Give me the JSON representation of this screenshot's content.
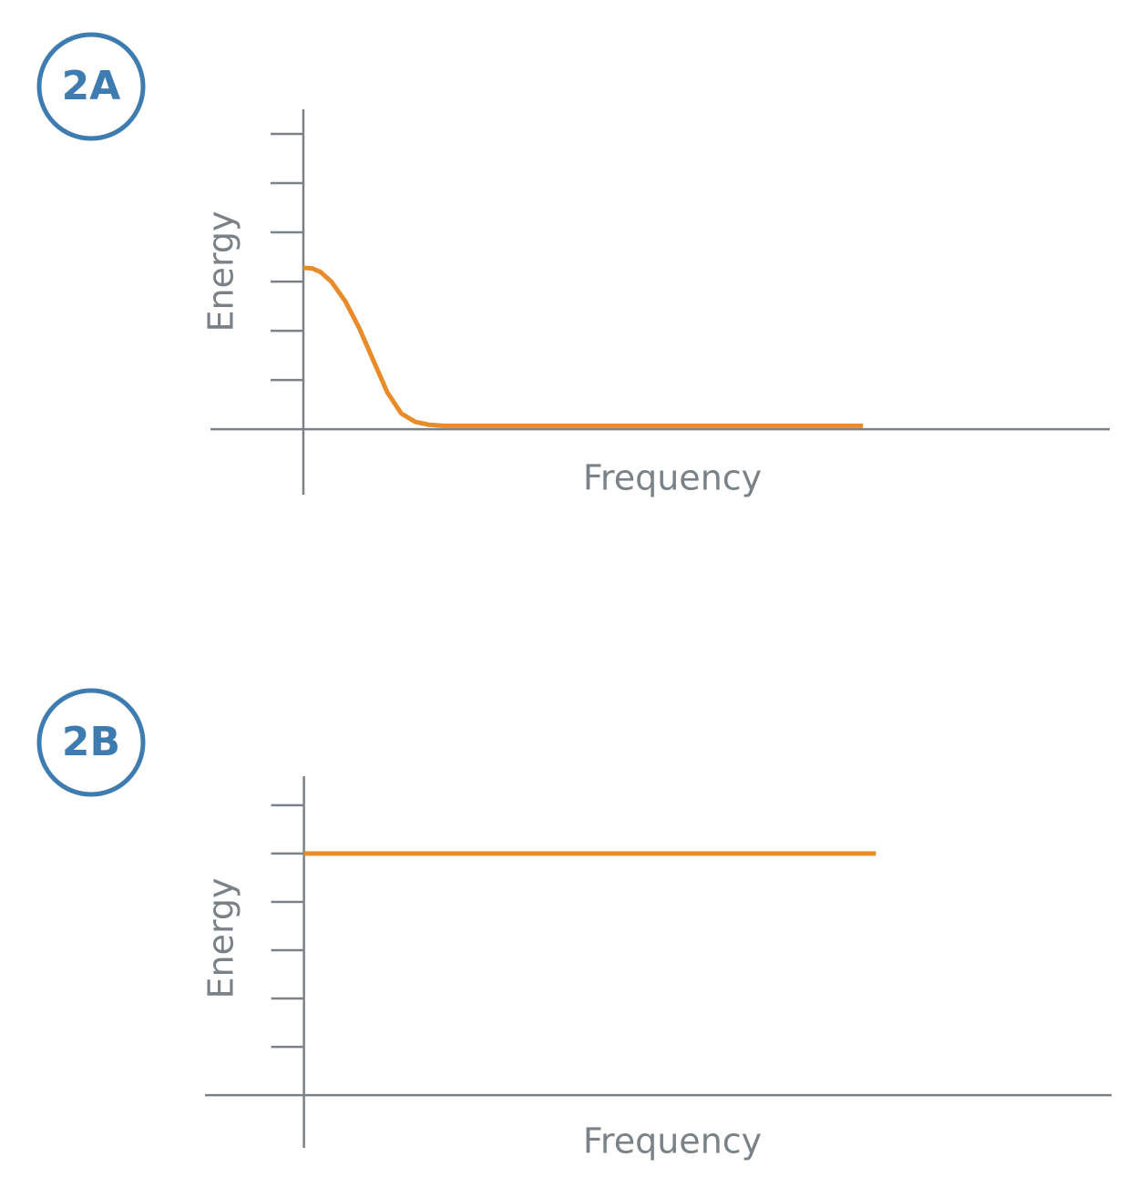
{
  "chart_data": [
    {
      "type": "line",
      "label": "2A",
      "x_label": "Frequency",
      "y_label": "Energy",
      "x": [
        0,
        0.15,
        0.3,
        0.5,
        0.75,
        1,
        1.25,
        1.5,
        1.75,
        2,
        2.25,
        2.5,
        3,
        4,
        10
      ],
      "values": [
        3.28,
        3.27,
        3.2,
        3.0,
        2.6,
        2.05,
        1.4,
        0.75,
        0.32,
        0.15,
        0.09,
        0.07,
        0.07,
        0.07,
        0.07
      ],
      "color": "#e88b2a",
      "xlim": [
        -1.66,
        14.41
      ],
      "ylim": [
        -1.33,
        6.5
      ],
      "yticks": [
        1,
        2,
        3,
        4,
        5,
        6
      ]
    },
    {
      "type": "line",
      "label": "2B",
      "x_label": "Frequency",
      "y_label": "Energy",
      "x": [
        0,
        10
      ],
      "values": [
        5,
        5
      ],
      "color": "#e88b2a",
      "xlim": [
        -1.73,
        14.12
      ],
      "ylim": [
        -1.09,
        6.6
      ],
      "yticks": [
        1,
        2,
        3,
        4,
        5,
        6
      ]
    }
  ]
}
